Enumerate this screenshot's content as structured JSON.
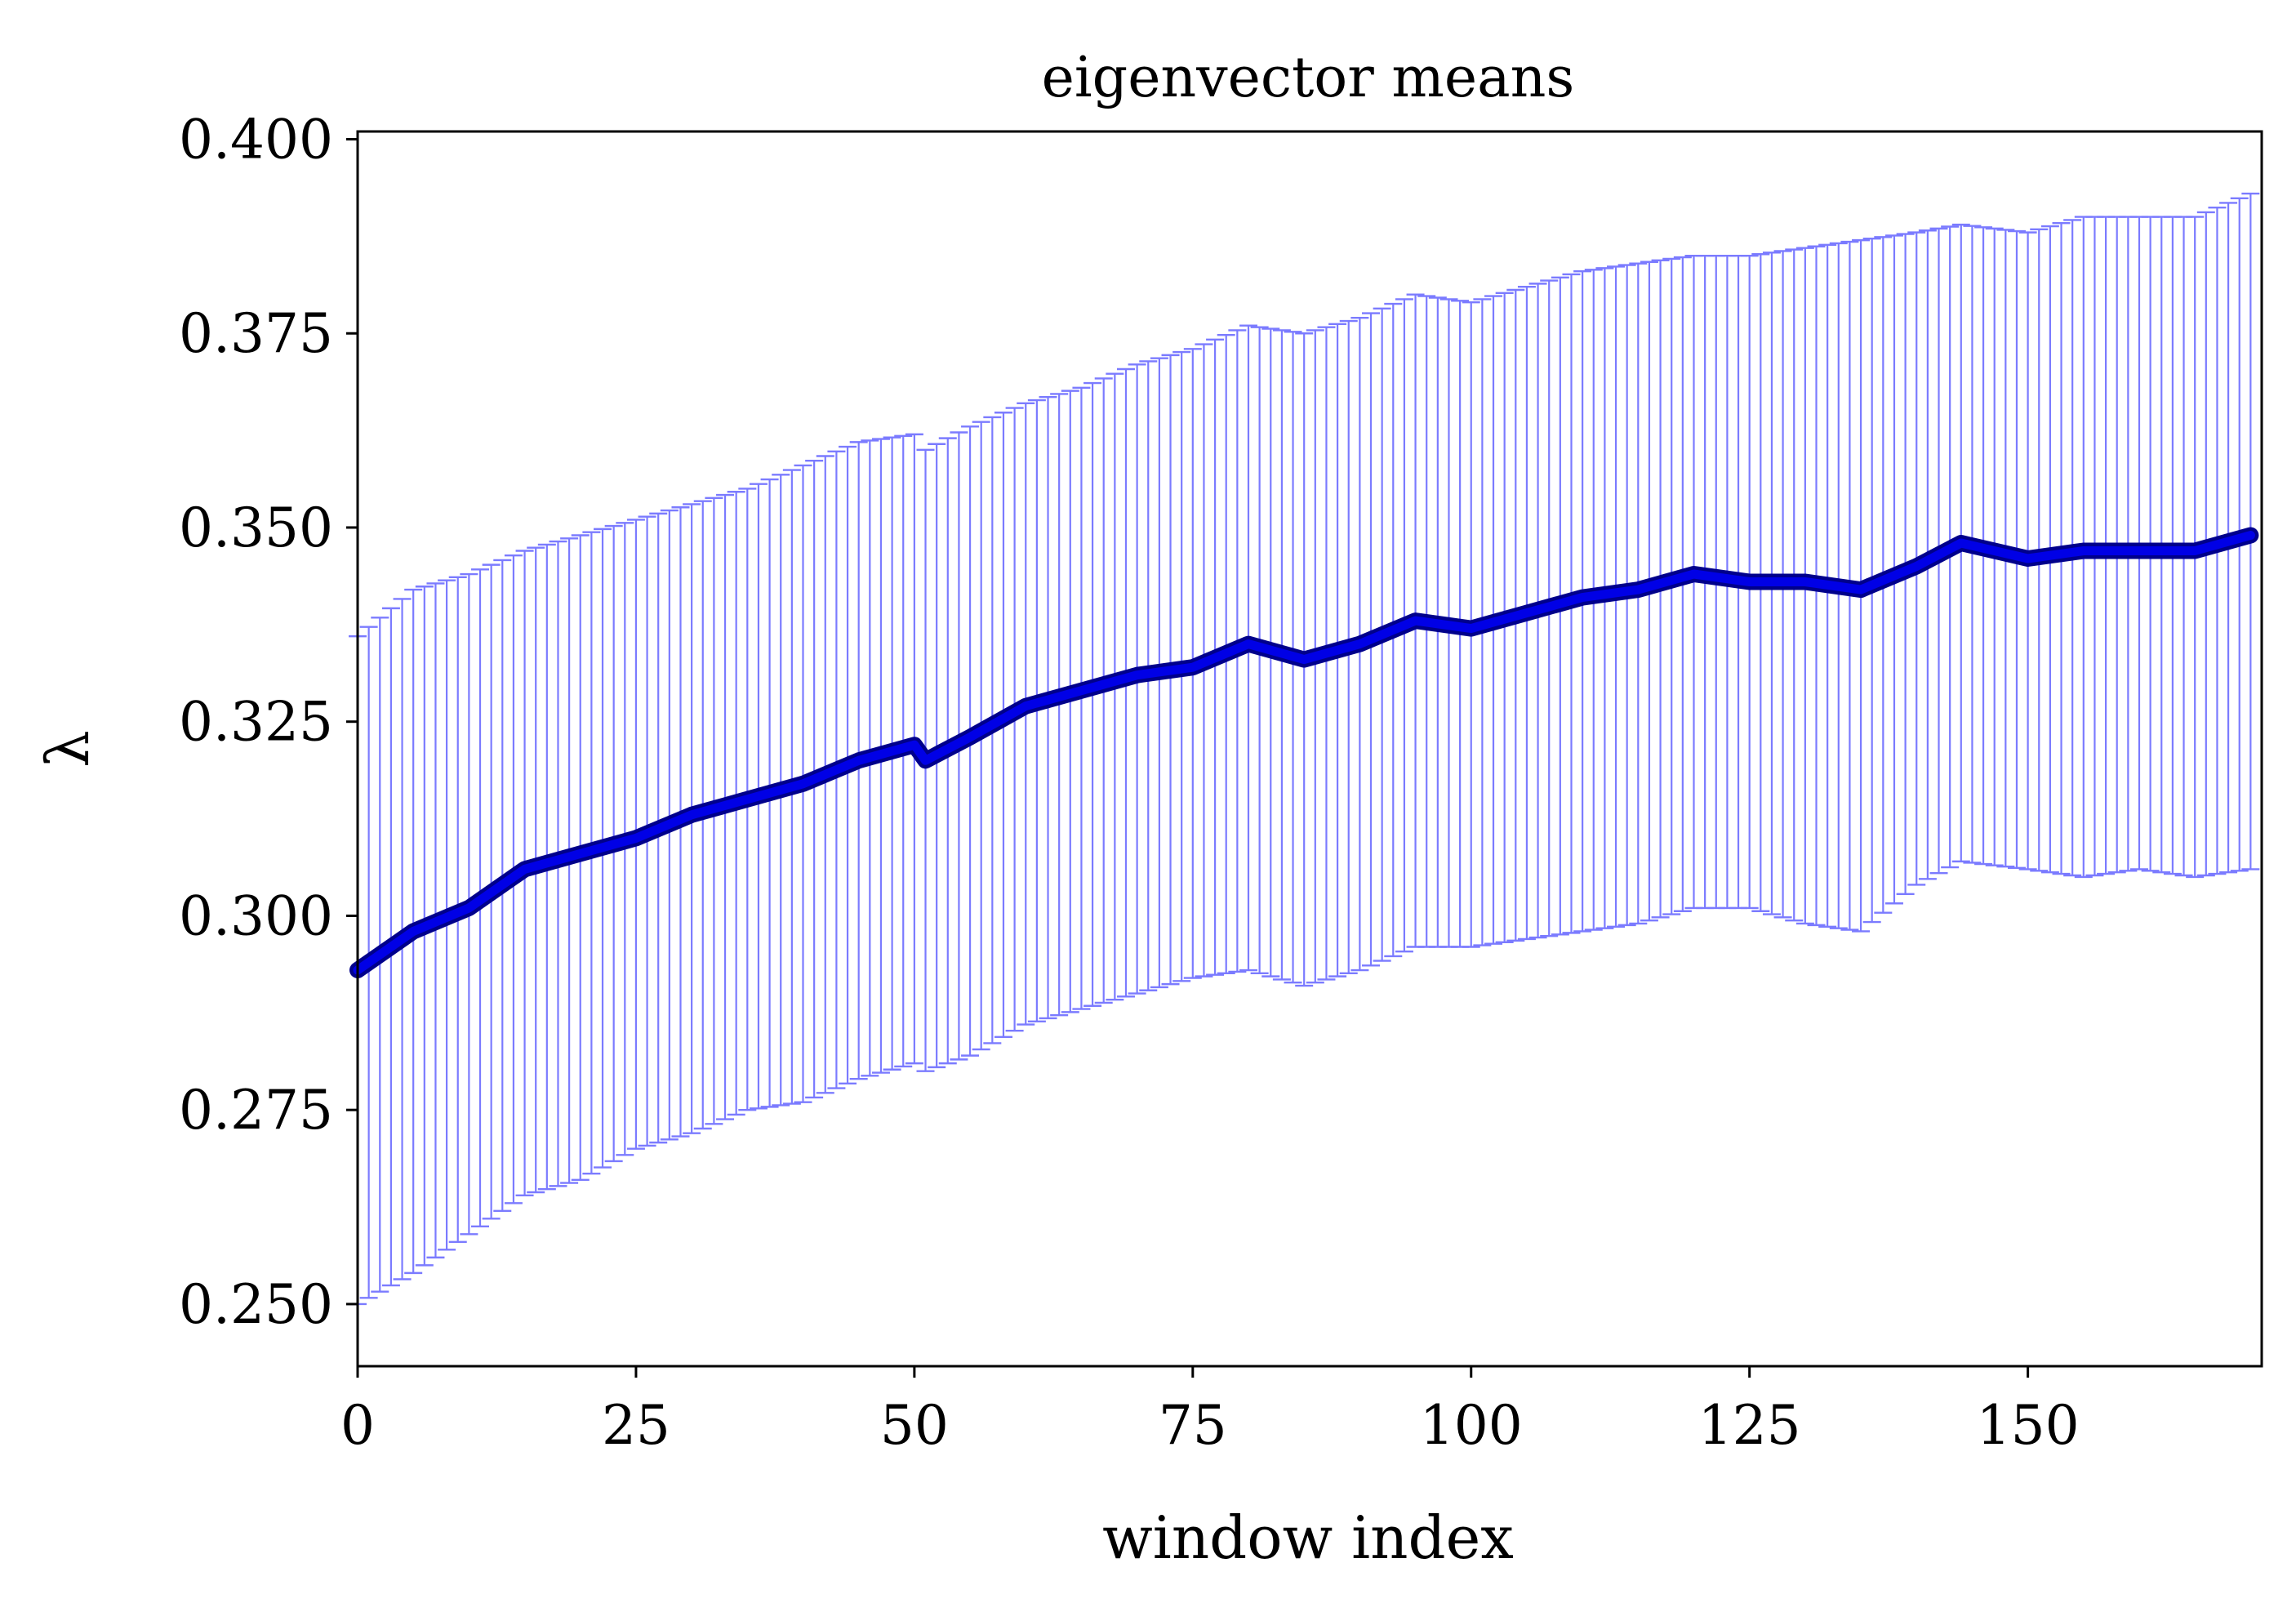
{
  "chart_data": {
    "type": "line",
    "title": "eigenvector means",
    "xlabel": "window index",
    "ylabel": "λ",
    "xlim": [
      0,
      171
    ],
    "ylim": [
      0.242,
      0.401
    ],
    "xticks": [
      0,
      25,
      50,
      75,
      100,
      125,
      150
    ],
    "xtick_labels": [
      "0",
      "25",
      "50",
      "75",
      "100",
      "125",
      "150"
    ],
    "yticks": [
      0.25,
      0.275,
      0.3,
      0.325,
      0.35,
      0.375,
      0.4
    ],
    "ytick_labels": [
      "0.250",
      "0.275",
      "0.300",
      "0.325",
      "0.350",
      "0.375",
      "0.400"
    ],
    "grid": false,
    "colors": {
      "line": "#0000e6",
      "line_edge": "#00008b",
      "errorbar": "#7b7bff"
    },
    "series": [
      {
        "x": [
          0,
          5,
          10,
          15,
          20,
          25,
          30,
          35,
          40,
          45,
          50,
          51,
          55,
          60,
          65,
          70,
          75,
          80,
          85,
          90,
          95,
          100,
          105,
          110,
          115,
          120,
          125,
          130,
          135,
          140,
          144,
          150,
          155,
          160,
          165,
          170
        ],
        "mean": [
          0.293,
          0.298,
          0.301,
          0.306,
          0.308,
          0.31,
          0.313,
          0.315,
          0.317,
          0.32,
          0.322,
          0.32,
          0.323,
          0.327,
          0.329,
          0.331,
          0.332,
          0.335,
          0.333,
          0.335,
          0.338,
          0.337,
          0.339,
          0.341,
          0.342,
          0.344,
          0.343,
          0.343,
          0.342,
          0.345,
          0.348,
          0.346,
          0.347,
          0.347,
          0.347,
          0.349
        ],
        "upper": [
          0.336,
          0.342,
          0.344,
          0.347,
          0.349,
          0.351,
          0.353,
          0.355,
          0.358,
          0.361,
          0.362,
          0.36,
          0.363,
          0.366,
          0.368,
          0.371,
          0.373,
          0.376,
          0.375,
          0.377,
          0.38,
          0.379,
          0.381,
          0.383,
          0.384,
          0.385,
          0.385,
          0.386,
          0.387,
          0.388,
          0.389,
          0.388,
          0.39,
          0.39,
          0.39,
          0.393
        ],
        "lower": [
          0.25,
          0.254,
          0.259,
          0.264,
          0.266,
          0.27,
          0.272,
          0.275,
          0.276,
          0.279,
          0.281,
          0.28,
          0.282,
          0.286,
          0.288,
          0.29,
          0.292,
          0.293,
          0.291,
          0.293,
          0.296,
          0.296,
          0.297,
          0.298,
          0.299,
          0.301,
          0.301,
          0.299,
          0.298,
          0.304,
          0.307,
          0.306,
          0.305,
          0.306,
          0.305,
          0.306
        ]
      }
    ]
  }
}
